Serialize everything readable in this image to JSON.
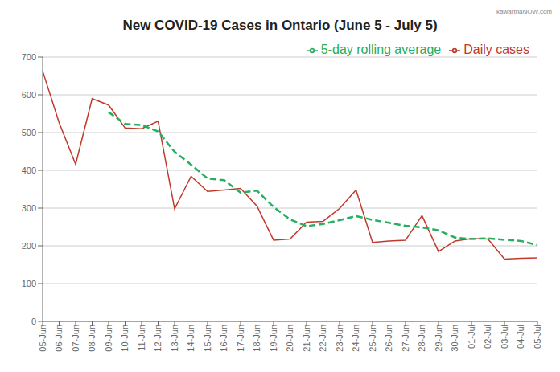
{
  "chart_data": {
    "type": "line",
    "title": "New COVID-19 Cases in Ontario (June 5 - July 5)",
    "annotations": [
      "kawarthaNOW.com"
    ],
    "categories": [
      "05-Jun",
      "06-Jun",
      "07-Jun",
      "08-Jun",
      "09-Jun",
      "10-Jun",
      "11-Jun",
      "12-Jun",
      "13-Jun",
      "14-Jun",
      "15-Jun",
      "16-Jun",
      "17-Jun",
      "18-Jun",
      "19-Jun",
      "20-Jun",
      "21-Jun",
      "22-Jun",
      "23-Jun",
      "24-Jun",
      "25-Jun",
      "26-Jun",
      "27-Jun",
      "28-Jun",
      "29-Jun",
      "30-Jun",
      "01-Jul",
      "02-Jul",
      "03-Jul",
      "04-Jul",
      "05-Jul"
    ],
    "series": [
      {
        "name": "Daily cases",
        "color": "#c0392b",
        "line_style": "solid",
        "values": [
          663,
          526,
          416,
          590,
          573,
          512,
          510,
          530,
          298,
          384,
          344,
          348,
          352,
          305,
          215,
          218,
          263,
          265,
          299,
          348,
          209,
          213,
          215,
          280,
          185,
          213,
          219,
          218,
          165,
          167,
          168
        ]
      },
      {
        "name": "5-day rolling average",
        "color": "#27ae60",
        "line_style": "dashed",
        "values": [
          null,
          null,
          null,
          null,
          554,
          523,
          520,
          503,
          449,
          415,
          378,
          374,
          341,
          346,
          303,
          270,
          252,
          258,
          268,
          279,
          269,
          261,
          253,
          249,
          241,
          222,
          218,
          220,
          216,
          213,
          202
        ]
      }
    ],
    "ylim": [
      0,
      700
    ],
    "yticks": [
      0,
      100,
      200,
      300,
      400,
      500,
      600,
      700
    ],
    "grid": true,
    "legend": "upper right"
  }
}
